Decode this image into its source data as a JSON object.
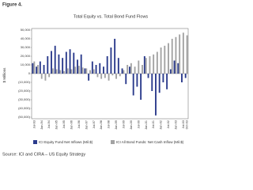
{
  "figure_label": "Figure 4.",
  "source": "Source: ICI and CIRA – US Equity Strategy",
  "chart_data": {
    "type": "bar",
    "title": "Total Equity vs. Total Bond Fund Flows",
    "y_label": "$ Millions",
    "categories": [
      "Jul-93",
      null,
      "Jan-94",
      null,
      "Jul-94",
      null,
      "Jan-95",
      null,
      "Jul-95",
      null,
      "Jan-96",
      null,
      "Jul-96",
      null,
      "Jan-97",
      null,
      "Jul-97",
      null,
      "Jan-98",
      null,
      "Jul-98",
      null,
      "Jan-99",
      null,
      "Jul-99",
      null,
      "Jan-00",
      null,
      "Jul-00",
      null,
      "Jan-01",
      null,
      "Jul-01",
      null,
      "Jan-02",
      null,
      "Jul-02",
      null,
      "Jan-03",
      null,
      "Jul-03",
      "Oct-03"
    ],
    "series": [
      {
        "name": "ICI Equity Fund Net Inflows (Mil.$)",
        "color": "#2b3b8c",
        "values": [
          12000,
          8000,
          14000,
          10000,
          20000,
          26000,
          32000,
          22000,
          18000,
          25000,
          28000,
          24000,
          16000,
          22000,
          6000,
          -8000,
          14000,
          10000,
          12000,
          8000,
          20000,
          30000,
          40000,
          18000,
          6000,
          -12000,
          8000,
          -25000,
          -15000,
          -30000,
          20000,
          -5000,
          -20000,
          -48000,
          -22000,
          -10000,
          -18000,
          5000,
          15000,
          12000,
          -10000,
          -5000
        ]
      },
      {
        "name": "ICI All Bond Funds: Net Cash Inflow (Mil.$)",
        "color": "#a3a3a3",
        "values": [
          14000,
          10000,
          -6000,
          -8000,
          -4000,
          6000,
          5000,
          4000,
          3000,
          6000,
          5000,
          8000,
          9000,
          7000,
          6000,
          4000,
          5000,
          -4000,
          -6000,
          -5000,
          -8000,
          -2000,
          -6000,
          -3000,
          4000,
          10000,
          12000,
          8000,
          15000,
          10000,
          18000,
          20000,
          22000,
          25000,
          30000,
          32000,
          35000,
          40000,
          42000,
          45000,
          47000,
          44000
        ]
      }
    ],
    "ylim": [
      -50000,
      50000
    ],
    "yticks": [
      {
        "value": -50000,
        "label": "(50,000)"
      },
      {
        "value": -40000,
        "label": "(40,000)"
      },
      {
        "value": -30000,
        "label": "(30,000)"
      },
      {
        "value": -20000,
        "label": "(20,000)"
      },
      {
        "value": -10000,
        "label": "(10,000)"
      },
      0,
      {
        "value": 10000,
        "label": "10,000"
      },
      {
        "value": 20000,
        "label": "20,000"
      },
      {
        "value": 30000,
        "label": "30,000"
      },
      {
        "value": 40000,
        "label": "40,000"
      },
      {
        "value": 50000,
        "label": "50,000"
      }
    ]
  }
}
